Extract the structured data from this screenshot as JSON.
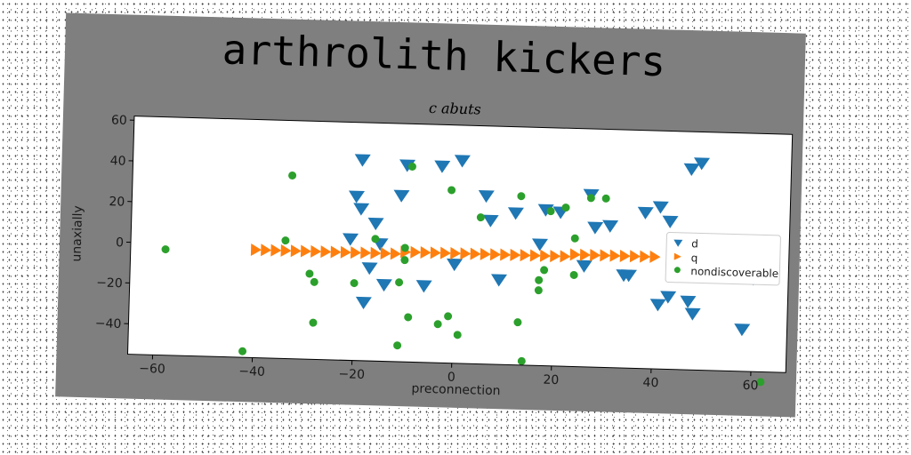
{
  "chart_data": {
    "type": "scatter",
    "title": "arthrolith kickers",
    "subtitle": "c abuts",
    "xlabel": "preconnection",
    "ylabel": "unaxially",
    "xlim": [
      -65,
      67
    ],
    "ylim": [
      -55,
      62
    ],
    "xticks": [
      -60,
      -40,
      -20,
      0,
      20,
      40,
      60
    ],
    "yticks": [
      -40,
      -20,
      0,
      20,
      40,
      60
    ],
    "grid": false,
    "legend_position": "right",
    "series": [
      {
        "name": "d",
        "marker": "triangle-down",
        "color": "#1f77b4",
        "points": [
          [
            -19,
            44
          ],
          [
            -10,
            42
          ],
          [
            -3,
            42
          ],
          [
            1,
            45
          ],
          [
            -11,
            27
          ],
          [
            -20,
            26
          ],
          [
            -19,
            20
          ],
          [
            -16,
            13
          ],
          [
            -21,
            5
          ],
          [
            -15,
            3
          ],
          [
            -17,
            -9
          ],
          [
            -14,
            -17
          ],
          [
            -6,
            -17
          ],
          [
            0,
            -6
          ],
          [
            -18,
            -26
          ],
          [
            6,
            28
          ],
          [
            7,
            16
          ],
          [
            12,
            20
          ],
          [
            18,
            22
          ],
          [
            21,
            21
          ],
          [
            27,
            30
          ],
          [
            28,
            14
          ],
          [
            31,
            15
          ],
          [
            26,
            -5
          ],
          [
            34,
            -9
          ],
          [
            35,
            -9
          ],
          [
            38,
            22
          ],
          [
            41,
            25
          ],
          [
            43,
            18
          ],
          [
            47,
            44
          ],
          [
            49,
            47
          ],
          [
            9,
            -13
          ],
          [
            17,
            5
          ],
          [
            41,
            -23
          ],
          [
            43,
            -19
          ],
          [
            47,
            -21
          ],
          [
            48,
            -27
          ],
          [
            58,
            -34
          ],
          [
            60,
            -9
          ]
        ]
      },
      {
        "name": "q",
        "marker": "triangle-right",
        "color": "#ff7f0e",
        "points": [
          [
            -40,
            -2
          ],
          [
            -38,
            -2
          ],
          [
            -36,
            -2
          ],
          [
            -34,
            -2
          ],
          [
            -32,
            -2
          ],
          [
            -30,
            -2
          ],
          [
            -28,
            -2
          ],
          [
            -26,
            -2
          ],
          [
            -24,
            -2
          ],
          [
            -22,
            -2
          ],
          [
            -20,
            -2
          ],
          [
            -18,
            -2
          ],
          [
            -16,
            -2
          ],
          [
            -14,
            -2
          ],
          [
            -12,
            -2
          ],
          [
            -10,
            -1
          ],
          [
            -8,
            -1
          ],
          [
            -6,
            -1
          ],
          [
            -4,
            -1
          ],
          [
            -2,
            -1
          ],
          [
            0,
            -1
          ],
          [
            2,
            -1
          ],
          [
            4,
            -1
          ],
          [
            6,
            -1
          ],
          [
            8,
            -1
          ],
          [
            10,
            -1
          ],
          [
            12,
            -1
          ],
          [
            14,
            -1
          ],
          [
            16,
            -1
          ],
          [
            18,
            -1
          ],
          [
            20,
            -1
          ],
          [
            22,
            -1
          ],
          [
            24,
            0
          ],
          [
            26,
            0
          ],
          [
            28,
            0
          ],
          [
            30,
            0
          ],
          [
            32,
            0
          ],
          [
            34,
            0
          ],
          [
            36,
            0
          ],
          [
            38,
            0
          ],
          [
            40,
            0
          ]
        ]
      },
      {
        "name": "nondiscoverable",
        "marker": "circle",
        "color": "#2ca02c",
        "points": [
          [
            -58,
            -3
          ],
          [
            -42,
            -52
          ],
          [
            -33,
            35
          ],
          [
            -34,
            3
          ],
          [
            -29,
            -13
          ],
          [
            -28,
            -17
          ],
          [
            -28,
            -37
          ],
          [
            -20,
            -17
          ],
          [
            -16,
            5
          ],
          [
            -10,
            1
          ],
          [
            -10,
            -5
          ],
          [
            -11,
            -16
          ],
          [
            -9,
            41
          ],
          [
            -9,
            -33
          ],
          [
            -11,
            -47
          ],
          [
            -3,
            -36
          ],
          [
            -1,
            30
          ],
          [
            -1,
            -32
          ],
          [
            1,
            -41
          ],
          [
            5,
            17
          ],
          [
            13,
            28
          ],
          [
            13,
            -34
          ],
          [
            14,
            -53
          ],
          [
            17,
            -13
          ],
          [
            17,
            -18
          ],
          [
            18,
            -8
          ],
          [
            19,
            21
          ],
          [
            22,
            23
          ],
          [
            24,
            8
          ],
          [
            24,
            -10
          ],
          [
            27,
            28
          ],
          [
            30,
            28
          ],
          [
            62,
            -60
          ]
        ]
      }
    ]
  }
}
